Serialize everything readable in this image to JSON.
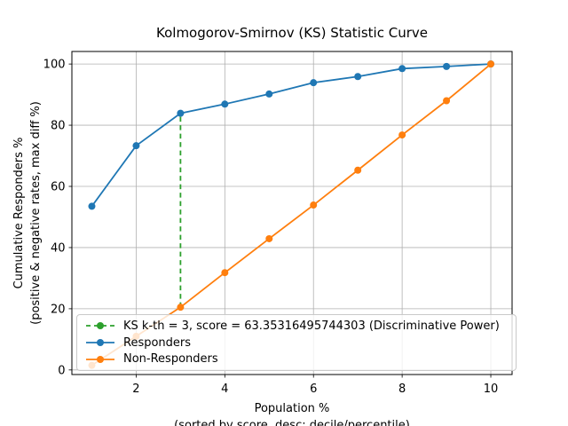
{
  "title": "Kolmogorov-Smirnov (KS) Statistic Curve",
  "chart_data": {
    "type": "line",
    "title": "Kolmogorov-Smirnov (KS) Statistic Curve",
    "xlabel": "Population %",
    "xlabel_note": "(sorted by score, desc: decile/percentile)",
    "ylabel": "Cumulative Responders %",
    "ylabel_note": "(positive & negative rates, max diff %)",
    "x": [
      1,
      2,
      3,
      4,
      5,
      6,
      7,
      8,
      9,
      10
    ],
    "x_ticks": [
      "2",
      "4",
      "6",
      "8",
      "10"
    ],
    "x_tick_values": [
      2,
      4,
      6,
      8,
      10
    ],
    "y_ticks": [
      "0",
      "20",
      "40",
      "60",
      "80",
      "100"
    ],
    "y_tick_values": [
      0,
      20,
      40,
      60,
      80,
      100
    ],
    "xlim": [
      0.55,
      10.48
    ],
    "ylim": [
      -1.5,
      104.1
    ],
    "grid": true,
    "legend_position": "lower-left",
    "series": [
      {
        "name": "Responders",
        "color": "#1f77b4",
        "marker": "circle",
        "values": [
          53.5,
          73.3,
          83.9,
          86.9,
          90.2,
          93.9,
          95.9,
          98.5,
          99.2,
          100
        ]
      },
      {
        "name": "Non-Responders",
        "color": "#ff7f0e",
        "marker": "circle",
        "values": [
          1.5,
          11,
          20.5,
          31.8,
          42.9,
          53.9,
          65.3,
          76.8,
          88,
          100
        ]
      }
    ],
    "ks_line": {
      "label": "KS k-th = 3, score = 63.35316495744303 (Discriminative Power)",
      "x": 3,
      "y_from": 20.5,
      "y_to": 83.9,
      "color": "#2ca02c",
      "style": "dashed"
    },
    "grid_color": "#b0b0b0",
    "axis_color": "#000000"
  }
}
